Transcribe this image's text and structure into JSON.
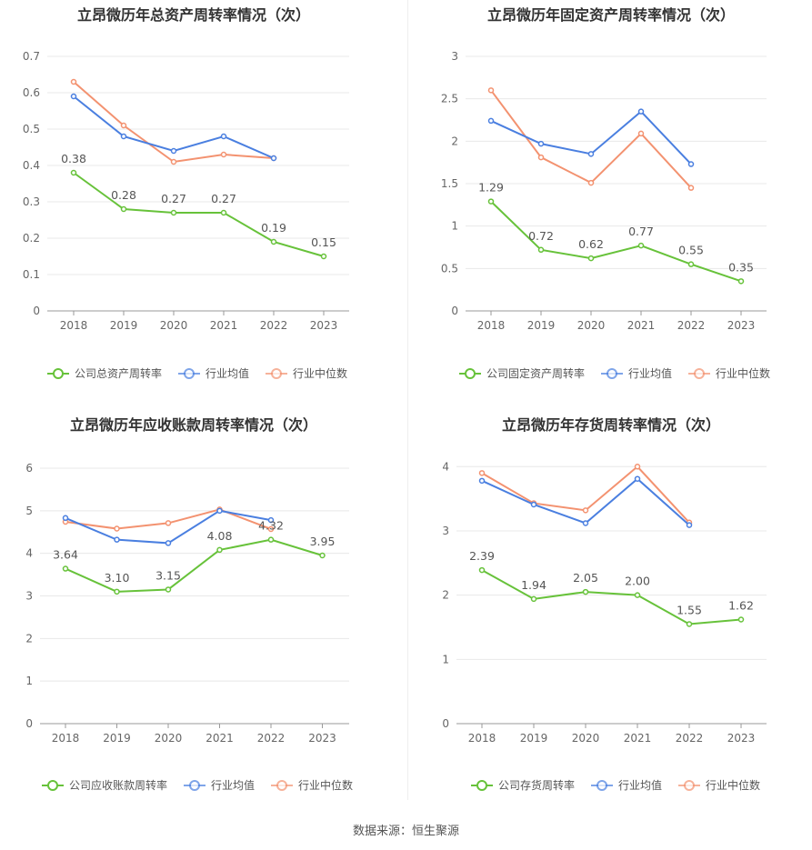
{
  "source_text": "数据来源：恒生聚源",
  "colors": {
    "company": "#67c23a",
    "avg": "#4a7fe0",
    "median": "#f39270",
    "grid": "#e8e8e8",
    "axis": "#999999",
    "text": "#666666",
    "title": "#333333"
  },
  "chart_data": [
    {
      "type": "line",
      "title": "立昂微历年总资产周转率情况（次）",
      "categories": [
        "2018",
        "2019",
        "2020",
        "2021",
        "2022",
        "2023"
      ],
      "ylim": [
        0,
        0.7
      ],
      "yticks": [
        "0",
        "0.1",
        "0.2",
        "0.3",
        "0.4",
        "0.5",
        "0.6",
        "0.7"
      ],
      "grid": true,
      "legend_position": "bottom",
      "series": [
        {
          "name": "公司总资产周转率",
          "role": "company",
          "values": [
            0.38,
            0.28,
            0.27,
            0.27,
            0.19,
            0.15
          ],
          "labels": [
            "0.38",
            "0.28",
            "0.27",
            "0.27",
            "0.19",
            "0.15"
          ]
        },
        {
          "name": "行业均值",
          "role": "avg",
          "values": [
            0.59,
            0.48,
            0.44,
            0.48,
            0.42,
            null
          ]
        },
        {
          "name": "行业中位数",
          "role": "median",
          "values": [
            0.63,
            0.51,
            0.41,
            0.43,
            0.42,
            null
          ]
        }
      ]
    },
    {
      "type": "line",
      "title": "立昂微历年固定资产周转率情况（次）",
      "categories": [
        "2018",
        "2019",
        "2020",
        "2021",
        "2022",
        "2023"
      ],
      "ylim": [
        0,
        3
      ],
      "yticks": [
        "0",
        "0.5",
        "1",
        "1.5",
        "2",
        "2.5",
        "3"
      ],
      "grid": true,
      "legend_position": "bottom",
      "series": [
        {
          "name": "公司固定资产周转率",
          "role": "company",
          "values": [
            1.29,
            0.72,
            0.62,
            0.77,
            0.55,
            0.35
          ],
          "labels": [
            "1.29",
            "0.72",
            "0.62",
            "0.77",
            "0.55",
            "0.35"
          ]
        },
        {
          "name": "行业均值",
          "role": "avg",
          "values": [
            2.24,
            1.97,
            1.85,
            2.35,
            1.73,
            null
          ]
        },
        {
          "name": "行业中位数",
          "role": "median",
          "values": [
            2.6,
            1.81,
            1.51,
            2.09,
            1.45,
            null
          ]
        }
      ]
    },
    {
      "type": "line",
      "title": "立昂微历年应收账款周转率情况（次）",
      "categories": [
        "2018",
        "2019",
        "2020",
        "2021",
        "2022",
        "2023"
      ],
      "ylim": [
        0,
        6
      ],
      "yticks": [
        "0",
        "1",
        "2",
        "3",
        "4",
        "5",
        "6"
      ],
      "grid": true,
      "legend_position": "bottom",
      "series": [
        {
          "name": "公司应收账款周转率",
          "role": "company",
          "values": [
            3.64,
            3.1,
            3.15,
            4.08,
            4.32,
            3.95
          ],
          "labels": [
            "3.64",
            "3.10",
            "3.15",
            "4.08",
            "4.32",
            "3.95"
          ]
        },
        {
          "name": "行业均值",
          "role": "avg",
          "values": [
            4.83,
            4.32,
            4.24,
            5.0,
            4.78,
            null
          ]
        },
        {
          "name": "行业中位数",
          "role": "median",
          "values": [
            4.74,
            4.58,
            4.71,
            5.03,
            4.57,
            null
          ]
        }
      ]
    },
    {
      "type": "line",
      "title": "立昂微历年存货周转率情况（次）",
      "categories": [
        "2018",
        "2019",
        "2020",
        "2021",
        "2022",
        "2023"
      ],
      "ylim": [
        0,
        4.4
      ],
      "yticks": [
        "0",
        "1",
        "2",
        "3",
        "4"
      ],
      "grid": true,
      "legend_position": "bottom",
      "series": [
        {
          "name": "公司存货周转率",
          "role": "company",
          "values": [
            2.39,
            1.94,
            2.05,
            2.0,
            1.55,
            1.62
          ],
          "labels": [
            "2.39",
            "1.94",
            "2.05",
            "2.00",
            "1.55",
            "1.62"
          ]
        },
        {
          "name": "行业均值",
          "role": "avg",
          "values": [
            3.78,
            3.41,
            3.12,
            3.81,
            3.09,
            null
          ]
        },
        {
          "name": "行业中位数",
          "role": "median",
          "values": [
            3.9,
            3.43,
            3.32,
            4.0,
            3.13,
            null
          ]
        }
      ]
    }
  ]
}
